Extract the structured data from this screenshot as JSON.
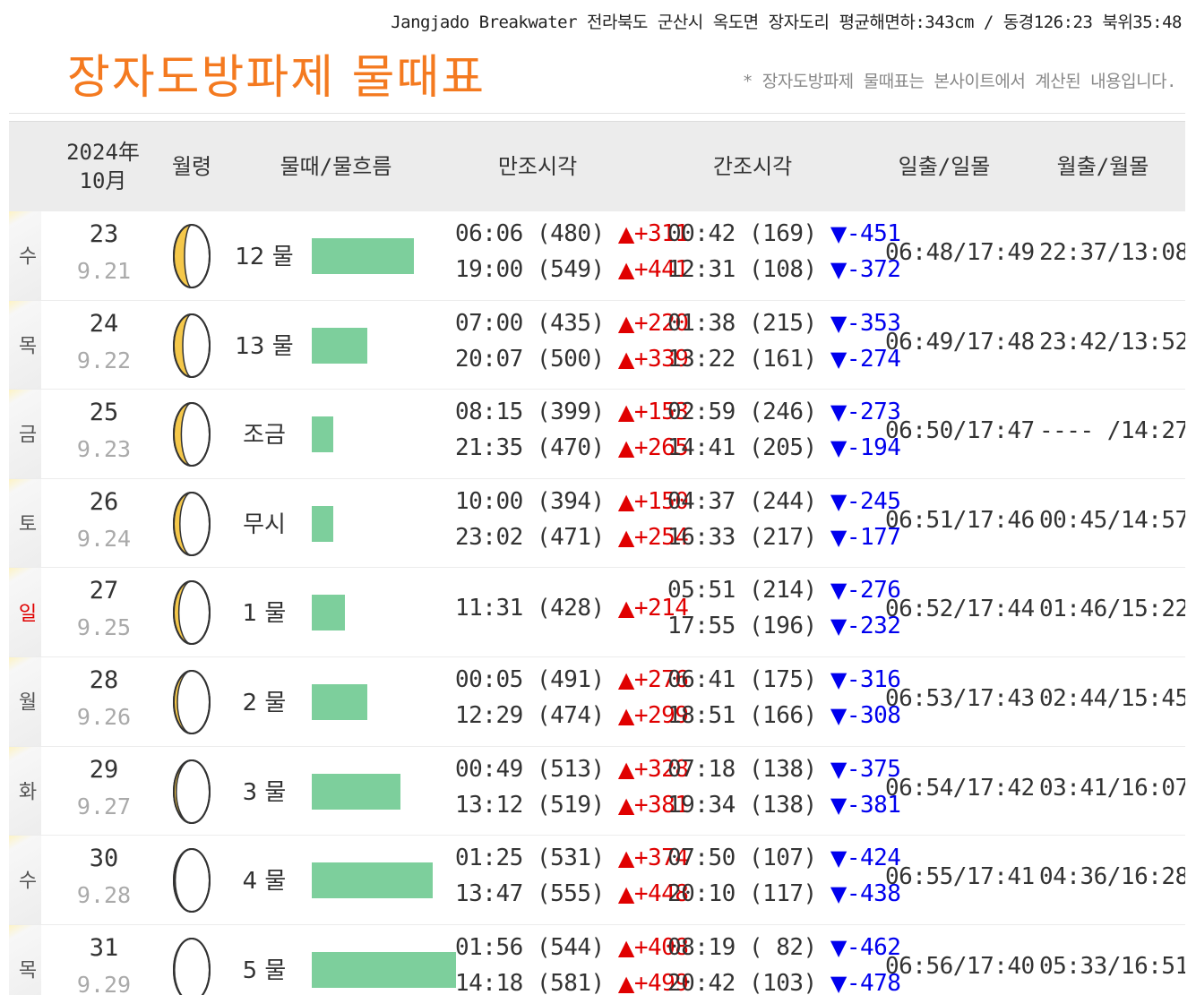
{
  "header": {
    "location": "Jangjado Breakwater 전라북도 군산시 옥도면 장자도리 평균해면하:343cm / 동경126:23 북위35:48",
    "title": "장자도방파제 물때표",
    "note": "* 장자도방파제 물때표는 본사이트에서 계산된 내용입니다."
  },
  "columns": {
    "year": "2024年",
    "month": "10月",
    "moon_age": "월령",
    "stage": "물때/물흐름",
    "high": "만조시각",
    "low": "간조시각",
    "sun": "일출/일몰",
    "moon": "월출/월몰"
  },
  "icons": {
    "high_tide": "up-triangle-icon",
    "low_tide": "down-triangle-icon",
    "moon_phase": "moon-phase-icon"
  },
  "colors": {
    "title": "#f47a20",
    "flow_bar": "#7dcf9c",
    "high_delta": "#e00000",
    "low_delta": "#0000ee",
    "sunday": "#e00000"
  },
  "rows": [
    {
      "weekday": "수",
      "sunday": false,
      "day": "23",
      "lunar": "9.21",
      "moon_phase": 0.7,
      "stage": "12 물",
      "flow": 0.53,
      "high": [
        {
          "time": "06:06",
          "level": "(480)",
          "arrow": "▲",
          "delta": "+311"
        },
        {
          "time": "19:00",
          "level": "(549)",
          "arrow": "▲",
          "delta": "+441"
        }
      ],
      "low": [
        {
          "time": "00:42",
          "level": "(169)",
          "arrow": "▼",
          "delta": "-451"
        },
        {
          "time": "12:31",
          "level": "(108)",
          "arrow": "▼",
          "delta": "-372"
        }
      ],
      "sun": "06:48/17:49",
      "moon": "22:37/13:08"
    },
    {
      "weekday": "목",
      "sunday": false,
      "day": "24",
      "lunar": "9.22",
      "moon_phase": 0.75,
      "stage": "13 물",
      "flow": 0.29,
      "high": [
        {
          "time": "07:00",
          "level": "(435)",
          "arrow": "▲",
          "delta": "+220"
        },
        {
          "time": "20:07",
          "level": "(500)",
          "arrow": "▲",
          "delta": "+339"
        }
      ],
      "low": [
        {
          "time": "01:38",
          "level": "(215)",
          "arrow": "▼",
          "delta": "-353"
        },
        {
          "time": "13:22",
          "level": "(161)",
          "arrow": "▼",
          "delta": "-274"
        }
      ],
      "sun": "06:49/17:48",
      "moon": "23:42/13:52"
    },
    {
      "weekday": "금",
      "sunday": false,
      "day": "25",
      "lunar": "9.23",
      "moon_phase": 0.79,
      "stage": "조금",
      "flow": 0.11,
      "high": [
        {
          "time": "08:15",
          "level": "(399)",
          "arrow": "▲",
          "delta": "+153"
        },
        {
          "time": "21:35",
          "level": "(470)",
          "arrow": "▲",
          "delta": "+265"
        }
      ],
      "low": [
        {
          "time": "02:59",
          "level": "(246)",
          "arrow": "▼",
          "delta": "-273"
        },
        {
          "time": "14:41",
          "level": "(205)",
          "arrow": "▼",
          "delta": "-194"
        }
      ],
      "sun": "06:50/17:47",
      "moon": "---- /14:27"
    },
    {
      "weekday": "토",
      "sunday": false,
      "day": "26",
      "lunar": "9.24",
      "moon_phase": 0.83,
      "stage": "무시",
      "flow": 0.11,
      "high": [
        {
          "time": "10:00",
          "level": "(394)",
          "arrow": "▲",
          "delta": "+150"
        },
        {
          "time": "23:02",
          "level": "(471)",
          "arrow": "▲",
          "delta": "+254"
        }
      ],
      "low": [
        {
          "time": "04:37",
          "level": "(244)",
          "arrow": "▼",
          "delta": "-245"
        },
        {
          "time": "16:33",
          "level": "(217)",
          "arrow": "▼",
          "delta": "-177"
        }
      ],
      "sun": "06:51/17:46",
      "moon": "00:45/14:57"
    },
    {
      "weekday": "일",
      "sunday": true,
      "day": "27",
      "lunar": "9.25",
      "moon_phase": 0.86,
      "stage": "1 물",
      "flow": 0.17,
      "high": [
        {
          "time": "11:31",
          "level": "(428)",
          "arrow": "▲",
          "delta": "+214"
        }
      ],
      "low": [
        {
          "time": "05:51",
          "level": "(214)",
          "arrow": "▼",
          "delta": "-276"
        },
        {
          "time": "17:55",
          "level": "(196)",
          "arrow": "▼",
          "delta": "-232"
        }
      ],
      "sun": "06:52/17:44",
      "moon": "01:46/15:22"
    },
    {
      "weekday": "월",
      "sunday": false,
      "day": "28",
      "lunar": "9.26",
      "moon_phase": 0.9,
      "stage": "2 물",
      "flow": 0.29,
      "high": [
        {
          "time": "00:05",
          "level": "(491)",
          "arrow": "▲",
          "delta": "+276"
        },
        {
          "time": "12:29",
          "level": "(474)",
          "arrow": "▲",
          "delta": "+299"
        }
      ],
      "low": [
        {
          "time": "06:41",
          "level": "(175)",
          "arrow": "▼",
          "delta": "-316"
        },
        {
          "time": "18:51",
          "level": "(166)",
          "arrow": "▼",
          "delta": "-308"
        }
      ],
      "sun": "06:53/17:43",
      "moon": "02:44/15:45"
    },
    {
      "weekday": "화",
      "sunday": false,
      "day": "29",
      "lunar": "9.27",
      "moon_phase": 0.93,
      "stage": "3 물",
      "flow": 0.46,
      "high": [
        {
          "time": "00:49",
          "level": "(513)",
          "arrow": "▲",
          "delta": "+328"
        },
        {
          "time": "13:12",
          "level": "(519)",
          "arrow": "▲",
          "delta": "+381"
        }
      ],
      "low": [
        {
          "time": "07:18",
          "level": "(138)",
          "arrow": "▼",
          "delta": "-375"
        },
        {
          "time": "19:34",
          "level": "(138)",
          "arrow": "▼",
          "delta": "-381"
        }
      ],
      "sun": "06:54/17:42",
      "moon": "03:41/16:07"
    },
    {
      "weekday": "수",
      "sunday": false,
      "day": "30",
      "lunar": "9.28",
      "moon_phase": 0.96,
      "stage": "4 물",
      "flow": 0.63,
      "high": [
        {
          "time": "01:25",
          "level": "(531)",
          "arrow": "▲",
          "delta": "+374"
        },
        {
          "time": "13:47",
          "level": "(555)",
          "arrow": "▲",
          "delta": "+448"
        }
      ],
      "low": [
        {
          "time": "07:50",
          "level": "(107)",
          "arrow": "▼",
          "delta": "-424"
        },
        {
          "time": "20:10",
          "level": "(117)",
          "arrow": "▼",
          "delta": "-438"
        }
      ],
      "sun": "06:55/17:41",
      "moon": "04:36/16:28"
    },
    {
      "weekday": "목",
      "sunday": false,
      "day": "31",
      "lunar": "9.29",
      "moon_phase": 0.98,
      "stage": "5 물",
      "flow": 0.75,
      "high": [
        {
          "time": "01:56",
          "level": "(544)",
          "arrow": "▲",
          "delta": "+408"
        },
        {
          "time": "14:18",
          "level": "(581)",
          "arrow": "▲",
          "delta": "+499"
        }
      ],
      "low": [
        {
          "time": "08:19",
          "level": "( 82)",
          "arrow": "▼",
          "delta": "-462"
        },
        {
          "time": "20:42",
          "level": "(103)",
          "arrow": "▼",
          "delta": "-478"
        }
      ],
      "sun": "06:56/17:40",
      "moon": "05:33/16:51"
    }
  ]
}
